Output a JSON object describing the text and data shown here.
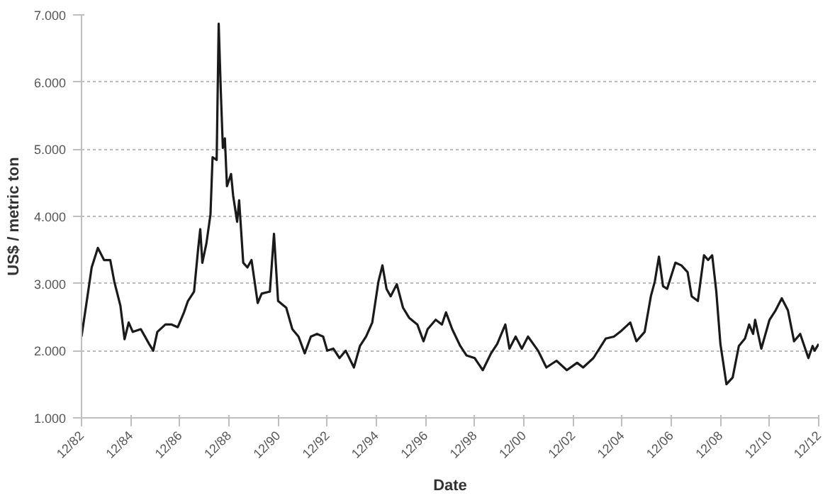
{
  "chart_data": {
    "type": "line",
    "xlabel": "Date",
    "ylabel": "US$ / metric ton",
    "grid": "y",
    "line_style": "solid",
    "xlim": [
      "1982-12",
      "2012-12"
    ],
    "ylim": [
      1000,
      7000
    ],
    "xticks": [
      {
        "value": "1982-12",
        "label": "12/82"
      },
      {
        "value": "1984-12",
        "label": "12/84"
      },
      {
        "value": "1986-12",
        "label": "12/86"
      },
      {
        "value": "1988-12",
        "label": "12/88"
      },
      {
        "value": "1990-12",
        "label": "12/90"
      },
      {
        "value": "1992-12",
        "label": "12/92"
      },
      {
        "value": "1994-12",
        "label": "12/94"
      },
      {
        "value": "1996-12",
        "label": "12/96"
      },
      {
        "value": "1998-12",
        "label": "12/98"
      },
      {
        "value": "2000-12",
        "label": "12/00"
      },
      {
        "value": "2002-12",
        "label": "12/02"
      },
      {
        "value": "2004-12",
        "label": "12/04"
      },
      {
        "value": "2006-12",
        "label": "12/06"
      },
      {
        "value": "2008-12",
        "label": "12/08"
      },
      {
        "value": "2010-12",
        "label": "12/10"
      },
      {
        "value": "2012-12",
        "label": "12/12"
      }
    ],
    "yticks": [
      {
        "value": 1000,
        "label": "1.000"
      },
      {
        "value": 2000,
        "label": "2.000"
      },
      {
        "value": 3000,
        "label": "3.000"
      },
      {
        "value": 4000,
        "label": "4.000"
      },
      {
        "value": 5000,
        "label": "5.000"
      },
      {
        "value": 6000,
        "label": "6.000"
      },
      {
        "value": 7000,
        "label": "7.000"
      }
    ],
    "series": [
      {
        "color": "#1a1a1a",
        "x": [
          "1982-12",
          "1983-03",
          "1983-05",
          "1983-08",
          "1983-11",
          "1984-02",
          "1984-04",
          "1984-07",
          "1984-09",
          "1984-11",
          "1985-01",
          "1985-05",
          "1985-09",
          "1985-11",
          "1986-01",
          "1986-05",
          "1986-08",
          "1986-11",
          "1987-02",
          "1987-04",
          "1987-07",
          "1987-09",
          "1987-10",
          "1987-11",
          "1988-01",
          "1988-03",
          "1988-04",
          "1988-06",
          "1988-07",
          "1988-08",
          "1988-09",
          "1988-10",
          "1988-11",
          "1989-01",
          "1989-02",
          "1989-04",
          "1989-05",
          "1989-07",
          "1989-09",
          "1989-11",
          "1990-02",
          "1990-04",
          "1990-08",
          "1990-10",
          "1990-12",
          "1991-04",
          "1991-07",
          "1991-10",
          "1992-01",
          "1992-04",
          "1992-07",
          "1992-10",
          "1992-12",
          "1993-03",
          "1993-06",
          "1993-09",
          "1994-01",
          "1994-04",
          "1994-07",
          "1994-10",
          "1995-01",
          "1995-03",
          "1995-05",
          "1995-07",
          "1995-10",
          "1996-01",
          "1996-04",
          "1996-08",
          "1996-11",
          "1997-01",
          "1997-05",
          "1997-08",
          "1997-10",
          "1998-01",
          "1998-05",
          "1998-08",
          "1998-12",
          "1999-04",
          "1999-08",
          "1999-11",
          "2000-03",
          "2000-05",
          "2000-08",
          "2000-11",
          "2001-02",
          "2001-07",
          "2001-11",
          "2002-04",
          "2002-09",
          "2003-02",
          "2003-05",
          "2003-10",
          "2004-04",
          "2004-08",
          "2004-11",
          "2005-04",
          "2005-07",
          "2005-11",
          "2006-02",
          "2006-04",
          "2006-06",
          "2006-08",
          "2006-10",
          "2007-02",
          "2007-05",
          "2007-08",
          "2007-10",
          "2008-01",
          "2008-04",
          "2008-06",
          "2008-08",
          "2008-10",
          "2008-12",
          "2009-03",
          "2009-06",
          "2009-09",
          "2009-12",
          "2010-02",
          "2010-04",
          "2010-05",
          "2010-08",
          "2010-12",
          "2011-03",
          "2011-06",
          "2011-09",
          "2011-12",
          "2012-03",
          "2012-07",
          "2012-09",
          "2012-10",
          "2012-12"
        ],
        "values": [
          2210,
          2820,
          3240,
          3530,
          3350,
          3350,
          3030,
          2670,
          2170,
          2420,
          2280,
          2320,
          2100,
          2000,
          2280,
          2390,
          2390,
          2350,
          2570,
          2740,
          2880,
          3530,
          3810,
          3310,
          3600,
          4030,
          4880,
          4840,
          6870,
          5880,
          5020,
          5160,
          4450,
          4630,
          4310,
          3920,
          4240,
          3310,
          3240,
          3350,
          2710,
          2850,
          2880,
          3740,
          2740,
          2640,
          2320,
          2210,
          1960,
          2210,
          2250,
          2210,
          2000,
          2030,
          1890,
          2000,
          1750,
          2070,
          2210,
          2420,
          3030,
          3270,
          2920,
          2810,
          2990,
          2640,
          2490,
          2390,
          2140,
          2320,
          2460,
          2390,
          2570,
          2320,
          2070,
          1930,
          1890,
          1710,
          1960,
          2100,
          2390,
          2030,
          2210,
          2030,
          2210,
          2000,
          1750,
          1850,
          1710,
          1820,
          1750,
          1890,
          2180,
          2210,
          2280,
          2420,
          2140,
          2280,
          2810,
          3030,
          3400,
          2960,
          2920,
          3310,
          3270,
          3170,
          2810,
          2740,
          3420,
          3350,
          3420,
          2880,
          2100,
          1500,
          1600,
          2070,
          2180,
          2390,
          2250,
          2460,
          2030,
          2460,
          2600,
          2780,
          2600,
          2140,
          2250,
          1890,
          2070,
          2000,
          2100
        ]
      }
    ]
  }
}
